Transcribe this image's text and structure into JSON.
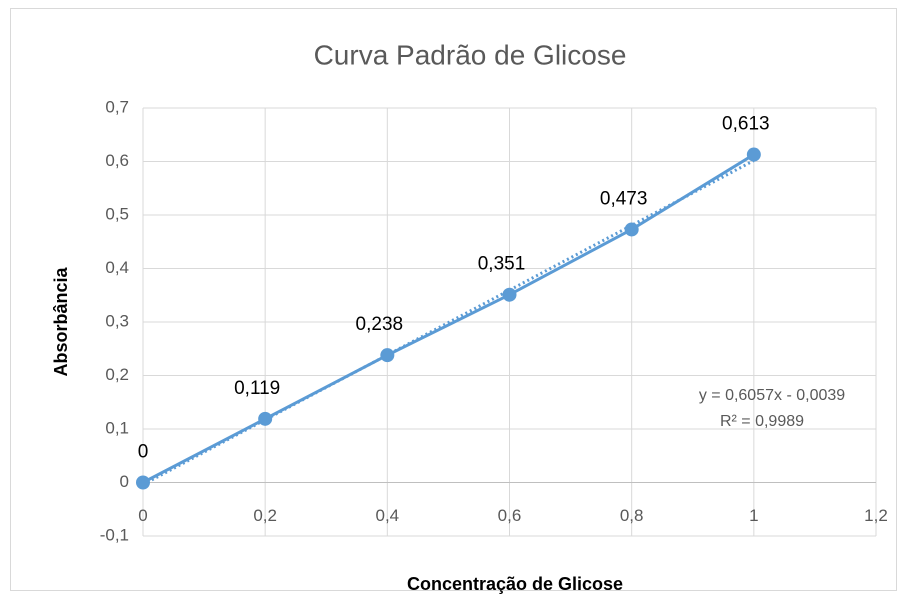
{
  "chart_data": {
    "type": "line",
    "title": "Curva Padrão de Glicose",
    "x_label": "Concentração de Glicose",
    "y_label": "Absorbância",
    "x": [
      0,
      0.2,
      0.4,
      0.6,
      0.8,
      1
    ],
    "values": [
      0,
      0.119,
      0.238,
      0.351,
      0.473,
      0.613
    ],
    "value_labels": [
      "0",
      "0,119",
      "0,238",
      "0,351",
      "0,473",
      "0,613"
    ],
    "color": "#5b9bd5",
    "xlim": [
      0,
      1.2
    ],
    "xticks": [
      0,
      {
        "value": 0.2,
        "label": "0,2"
      },
      {
        "value": 0.4,
        "label": "0,4"
      },
      {
        "value": 0.6,
        "label": "0,6"
      },
      {
        "value": 0.8,
        "label": "0,8"
      },
      1,
      {
        "value": 1.2,
        "label": "1,2"
      }
    ],
    "ylim": [
      -0.1,
      0.7
    ],
    "yticks": [
      {
        "value": -0.1,
        "label": "-0,1"
      },
      0,
      {
        "value": 0.1,
        "label": "0,1"
      },
      {
        "value": 0.2,
        "label": "0,2"
      },
      {
        "value": 0.3,
        "label": "0,3"
      },
      {
        "value": 0.4,
        "label": "0,4"
      },
      {
        "value": 0.5,
        "label": "0,5"
      },
      {
        "value": 0.6,
        "label": "0,6"
      },
      {
        "value": 0.7,
        "label": "0,7"
      }
    ],
    "grid": true,
    "trendline": {
      "slope": 0.6057,
      "intercept": -0.0039,
      "equation": "y = 0,6057x - 0,0039",
      "r2": "R² = 0,9989"
    }
  }
}
